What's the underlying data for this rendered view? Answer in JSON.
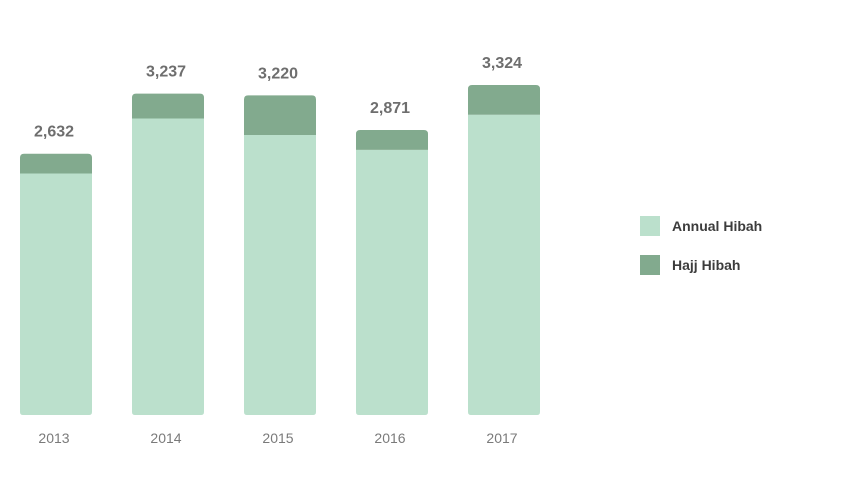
{
  "chart_data": {
    "type": "bar",
    "stacked": true,
    "categories": [
      "2013",
      "2014",
      "2015",
      "2016",
      "2017"
    ],
    "totals": [
      "2,632",
      "3,237",
      "3,220",
      "2,871",
      "3,324"
    ],
    "series": [
      {
        "name": "Annual Hibah",
        "values": [
          2432,
          2987,
          2820,
          2671,
          3024
        ],
        "color": "#bbe0cc"
      },
      {
        "name": "Hajj Hibah",
        "values": [
          200,
          250,
          400,
          200,
          300
        ],
        "color": "#82aa8e"
      }
    ],
    "ylim": [
      0,
      3324
    ],
    "grid": false,
    "legend_position": "right",
    "title": "",
    "xlabel": "",
    "ylabel": ""
  },
  "legend": {
    "items": [
      {
        "label": "Annual Hibah",
        "color": "#bbe0cc"
      },
      {
        "label": "Hajj Hibah",
        "color": "#82aa8e"
      }
    ]
  }
}
